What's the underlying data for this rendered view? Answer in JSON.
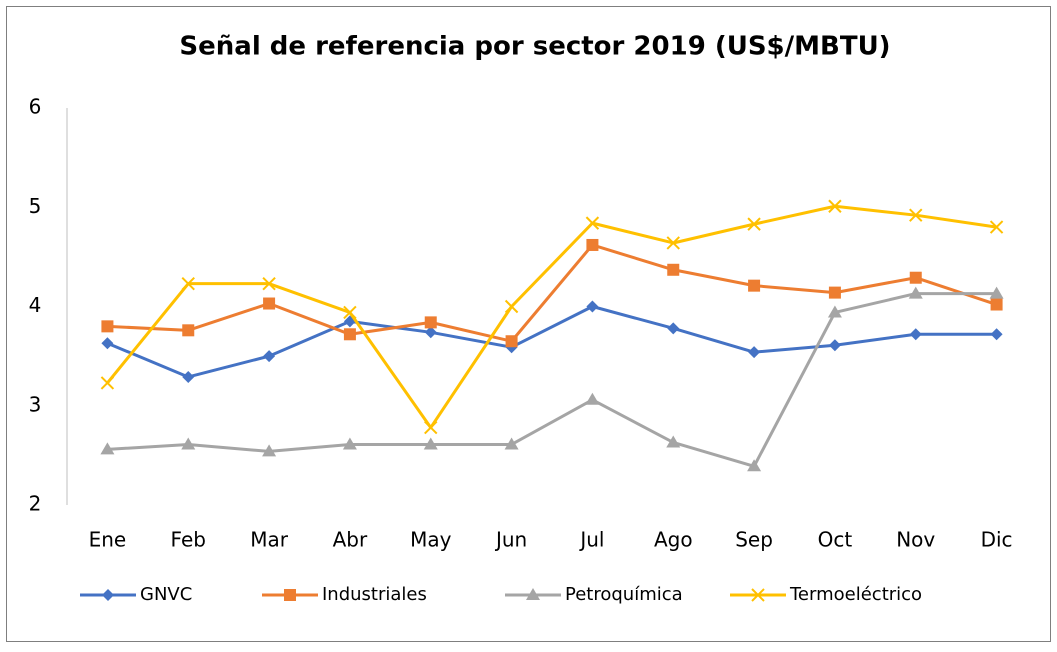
{
  "chart_data": {
    "type": "line",
    "title": "Señal de referencia por sector 2019 (US$/MBTU)",
    "categories": [
      "Ene",
      "Feb",
      "Mar",
      "Abr",
      "May",
      "Jun",
      "Jul",
      "Ago",
      "Sep",
      "Oct",
      "Nov",
      "Dic"
    ],
    "series": [
      {
        "name": "GNVC",
        "color": "#4472c4",
        "marker": "diamond",
        "values": [
          3.63,
          3.29,
          3.5,
          3.85,
          3.74,
          3.59,
          4.0,
          3.78,
          3.54,
          3.61,
          3.72,
          3.72
        ]
      },
      {
        "name": "Industriales",
        "color": "#ed7d31",
        "marker": "square",
        "values": [
          3.8,
          3.76,
          4.03,
          3.72,
          3.84,
          3.65,
          4.62,
          4.37,
          4.21,
          4.14,
          4.29,
          4.02
        ]
      },
      {
        "name": "Petroquímica",
        "color": "#a5a5a5",
        "marker": "triangle",
        "values": [
          2.56,
          2.61,
          2.54,
          2.61,
          2.61,
          2.61,
          3.06,
          2.63,
          2.39,
          3.94,
          4.13,
          4.13
        ]
      },
      {
        "name": "Termoeléctrico",
        "color": "#ffc000",
        "marker": "x",
        "values": [
          3.23,
          4.23,
          4.23,
          3.94,
          2.78,
          4.0,
          4.84,
          4.64,
          4.83,
          5.01,
          4.92,
          4.8
        ]
      }
    ],
    "ylim": [
      2,
      6
    ],
    "yticks": [
      2,
      3,
      4,
      5,
      6
    ],
    "grid": false,
    "legend": "bottom"
  }
}
